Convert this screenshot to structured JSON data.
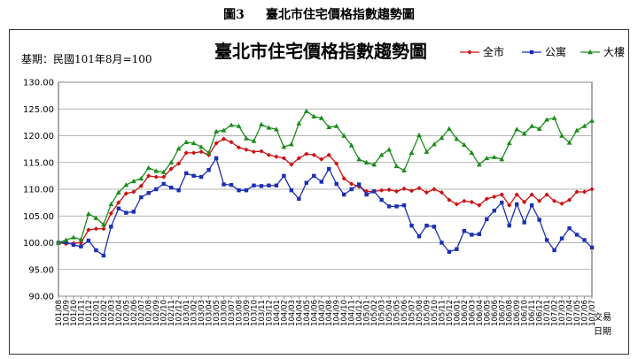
{
  "caption": {
    "number": "圖3",
    "text": "臺北市住宅價格指數趨勢圖"
  },
  "chart_data": {
    "type": "line",
    "title": "臺北市住宅價格指數趨勢圖",
    "base_note": "基期：民國101年8月=100",
    "xlabel": "交易日期",
    "ylim": [
      90,
      130
    ],
    "yticks": [
      "130.00",
      "125.00",
      "120.00",
      "115.00",
      "110.00",
      "105.00",
      "100.00",
      "95.00",
      "90.00"
    ],
    "grid": "horizontal",
    "legend_position": "top-right",
    "colors": {
      "series0": "#cc1111",
      "series1": "#1b2fb5",
      "series2": "#1a8c1a"
    },
    "x": [
      "101/08",
      "101/09",
      "101/10",
      "101/11",
      "101/12",
      "102/01",
      "102/02",
      "102/03",
      "102/04",
      "102/05",
      "102/06",
      "102/07",
      "102/08",
      "102/09",
      "102/10",
      "102/11",
      "102/12",
      "103/01",
      "103/02",
      "103/03",
      "103/04",
      "103/05",
      "103/06",
      "103/07",
      "103/08",
      "103/09",
      "103/10",
      "103/11",
      "103/12",
      "104/01",
      "104/02",
      "104/03",
      "104/04",
      "104/05",
      "104/06",
      "104/07",
      "104/08",
      "104/09",
      "104/10",
      "104/11",
      "104/12",
      "105/01",
      "105/02",
      "105/03",
      "105/04",
      "105/05",
      "105/06",
      "105/07",
      "105/08",
      "105/09",
      "105/10",
      "105/11",
      "105/12",
      "106/01",
      "106/02",
      "106/03",
      "106/04",
      "106/05",
      "106/06",
      "106/07",
      "106/08",
      "106/09",
      "106/10",
      "106/11",
      "106/12",
      "107/01",
      "107/02",
      "107/03",
      "107/04",
      "107/05",
      "107/06",
      "107/07"
    ],
    "series": [
      {
        "name": "全市",
        "marker": "diamond",
        "values": [
          100.0,
          99.8,
          99.9,
          100.0,
          102.4,
          102.6,
          102.6,
          105.5,
          107.5,
          109.2,
          109.5,
          110.6,
          112.5,
          112.3,
          112.3,
          113.8,
          114.8,
          116.8,
          116.8,
          117.0,
          116.4,
          118.6,
          119.4,
          118.8,
          117.8,
          117.4,
          117.0,
          117.1,
          116.4,
          116.1,
          115.8,
          114.6,
          115.8,
          116.6,
          116.4,
          115.6,
          116.4,
          114.8,
          112.0,
          111.0,
          110.5,
          109.6,
          109.6,
          109.8,
          109.9,
          109.6,
          110.1,
          109.7,
          110.2,
          109.4,
          110.0,
          109.4,
          108.0,
          107.2,
          107.8,
          107.6,
          107.0,
          108.2,
          108.6,
          109.0,
          107.0,
          109.0,
          107.6,
          109.0,
          107.8,
          109.0,
          107.8,
          107.3,
          108.0,
          109.5,
          109.5,
          110.0
        ]
      },
      {
        "name": "公寓",
        "marker": "square",
        "values": [
          100.0,
          100.1,
          99.6,
          99.3,
          100.4,
          98.6,
          97.6,
          103.0,
          106.4,
          105.6,
          105.8,
          108.5,
          109.3,
          110.0,
          111.0,
          110.3,
          109.8,
          113.0,
          112.5,
          112.3,
          113.6,
          115.8,
          110.9,
          110.8,
          109.8,
          109.8,
          110.7,
          110.6,
          110.7,
          110.7,
          112.5,
          109.8,
          108.2,
          111.2,
          112.5,
          111.4,
          113.8,
          111.0,
          109.0,
          110.0,
          110.9,
          109.0,
          109.6,
          108.0,
          106.8,
          106.8,
          107.0,
          103.2,
          101.2,
          103.2,
          103.0,
          100.0,
          98.3,
          98.8,
          102.2,
          101.5,
          101.6,
          104.4,
          106.0,
          107.5,
          103.2,
          107.2,
          103.8,
          107.0,
          104.3,
          100.5,
          98.6,
          100.8,
          102.7,
          101.5,
          100.5,
          99.1
        ]
      },
      {
        "name": "大樓",
        "marker": "triangle",
        "values": [
          100.0,
          100.5,
          101.0,
          100.6,
          105.4,
          104.6,
          103.4,
          107.2,
          109.4,
          110.8,
          111.5,
          112.0,
          114.0,
          113.4,
          113.2,
          115.0,
          117.6,
          118.8,
          118.6,
          117.9,
          116.8,
          120.8,
          121.0,
          122.0,
          121.8,
          119.5,
          119.0,
          122.1,
          121.5,
          121.2,
          117.9,
          118.4,
          122.3,
          124.6,
          123.6,
          123.3,
          121.6,
          121.8,
          120.0,
          118.2,
          115.6,
          115.0,
          114.6,
          116.4,
          117.4,
          114.3,
          113.5,
          116.8,
          120.1,
          117.0,
          118.4,
          119.6,
          121.3,
          119.4,
          118.3,
          116.8,
          114.6,
          115.8,
          116.0,
          115.6,
          118.6,
          121.2,
          120.4,
          121.8,
          121.3,
          123.0,
          123.3,
          120.0,
          118.7,
          121.0,
          121.8,
          122.8
        ]
      }
    ]
  }
}
